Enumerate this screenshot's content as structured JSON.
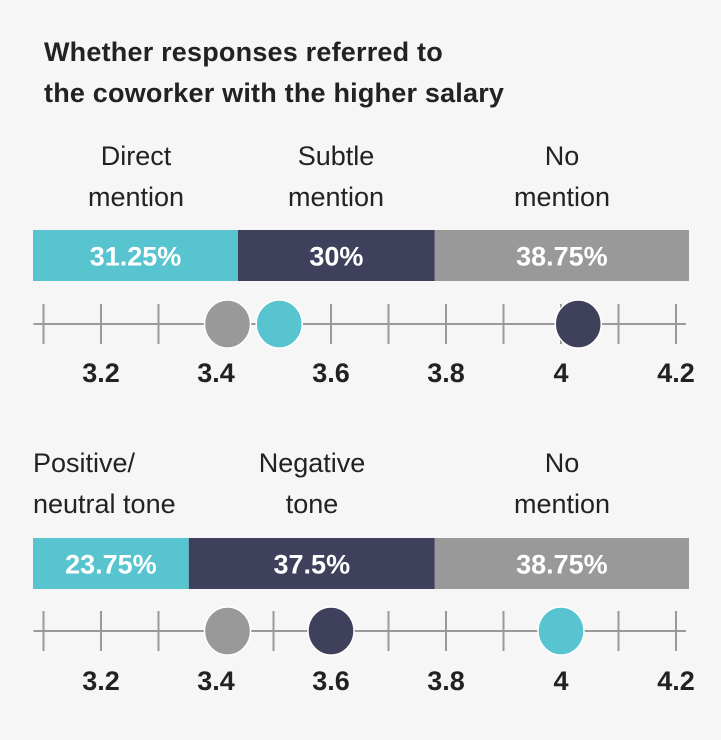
{
  "title_lines": [
    "Whether responses referred to",
    "the coworker with the higher salary"
  ],
  "colors": {
    "teal": "#57c4d0",
    "navy": "#3f415c",
    "gray": "#999999",
    "axis": "#9a9a9a",
    "text": "#222222",
    "bar_text": "#ffffff"
  },
  "chart_data": [
    {
      "type": "bar",
      "subtype": "stacked-100-bar-with-dot-scale",
      "title": "Whether responses referred to the coworker with the higher salary",
      "categories": [
        "Direct mention",
        "Subtle mention",
        "No mention"
      ],
      "category_label_lines": [
        [
          "Direct",
          "mention"
        ],
        [
          "Subtle",
          "mention"
        ],
        [
          "No",
          "mention"
        ]
      ],
      "values": [
        31.25,
        30,
        38.75
      ],
      "value_labels": [
        "31.25%",
        "30%",
        "38.75%"
      ],
      "colors": [
        "#57c4d0",
        "#3f415c",
        "#999999"
      ],
      "dots": [
        {
          "category": "No mention",
          "value": 3.42,
          "color": "#999999"
        },
        {
          "category": "Direct mention",
          "value": 3.51,
          "color": "#57c4d0"
        },
        {
          "category": "Subtle mention",
          "value": 4.03,
          "color": "#3f415c"
        }
      ],
      "scale": {
        "min": 3.1,
        "max": 4.2,
        "minor_step": 0.1,
        "tick_labels": [
          "3.2",
          "3.4",
          "3.6",
          "3.8",
          "4",
          "4.2"
        ],
        "tick_values": [
          3.2,
          3.4,
          3.6,
          3.8,
          4.0,
          4.2
        ]
      }
    },
    {
      "type": "bar",
      "subtype": "stacked-100-bar-with-dot-scale",
      "categories": [
        "Positive/neutral tone",
        "Negative tone",
        "No mention"
      ],
      "category_label_lines": [
        [
          "Positive/",
          "neutral tone"
        ],
        [
          "Negative",
          "tone"
        ],
        [
          "No",
          "mention"
        ]
      ],
      "values": [
        23.75,
        37.5,
        38.75
      ],
      "value_labels": [
        "23.75%",
        "37.5%",
        "38.75%"
      ],
      "colors": [
        "#57c4d0",
        "#3f415c",
        "#999999"
      ],
      "dots": [
        {
          "category": "No mention",
          "value": 3.42,
          "color": "#999999"
        },
        {
          "category": "Negative tone",
          "value": 3.6,
          "color": "#3f415c"
        },
        {
          "category": "Positive/neutral tone",
          "value": 4.0,
          "color": "#57c4d0"
        }
      ],
      "scale": {
        "min": 3.1,
        "max": 4.2,
        "minor_step": 0.1,
        "tick_labels": [
          "3.2",
          "3.4",
          "3.6",
          "3.8",
          "4",
          "4.2"
        ],
        "tick_values": [
          3.2,
          3.4,
          3.6,
          3.8,
          4.0,
          4.2
        ]
      }
    }
  ]
}
